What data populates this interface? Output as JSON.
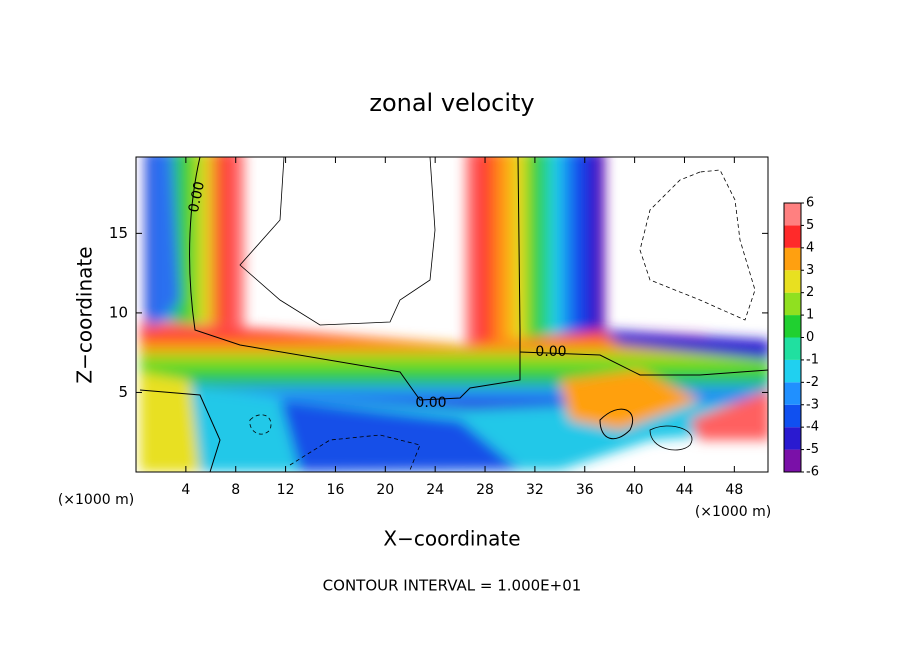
{
  "chart_data": {
    "type": "contour",
    "title": "zonal velocity",
    "x_label": "X−coordinate",
    "y_label": "Z−coordinate",
    "x_unit": "(×1000 m)",
    "y_unit": "(×1000 m)",
    "xlim": [
      0,
      50.7
    ],
    "xticks": [
      4,
      8,
      12,
      16,
      20,
      24,
      28,
      32,
      36,
      40,
      44,
      48
    ],
    "ylim": [
      0,
      19.8
    ],
    "yticks": [
      5,
      10,
      15
    ],
    "colorbar": {
      "ticks": [
        -6,
        -5,
        -4,
        -3,
        -2,
        -1,
        0,
        1,
        2,
        3,
        4,
        5,
        6
      ],
      "colors": [
        "#7a10a8",
        "#2a1ad0",
        "#1050f0",
        "#2090ff",
        "#20d0f0",
        "#20e0a0",
        "#20d030",
        "#90e020",
        "#e8e020",
        "#ffa010",
        "#ff2a2a",
        "#ff8080"
      ]
    },
    "contour_labels": [
      {
        "value": 0,
        "label": "0.00"
      },
      {
        "value": 0,
        "label": "0.00"
      },
      {
        "value": 0,
        "label": "0.00"
      }
    ],
    "footnote": "CONTOUR INTERVAL = 1.000E+01"
  }
}
